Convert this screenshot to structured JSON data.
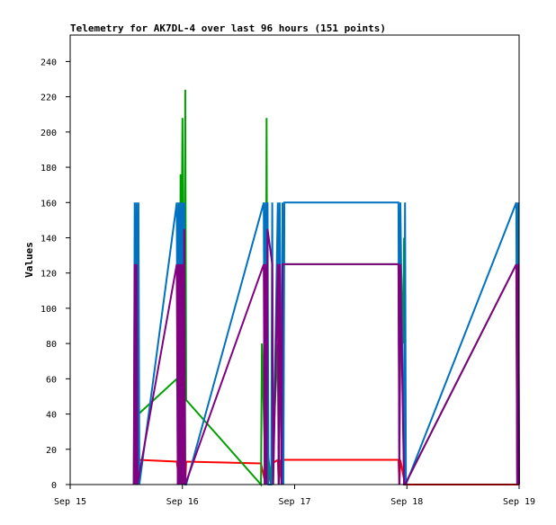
{
  "chart_data": {
    "type": "line",
    "title": "Telemetry for AK7DL-4 over last 96 hours (151 points)",
    "xlabel": "",
    "ylabel": "Values",
    "ylim": [
      0,
      255
    ],
    "xlim": [
      "2023-09-15T00:00",
      "2023-09-19T00:00"
    ],
    "yticks": [
      0,
      20,
      40,
      60,
      80,
      100,
      120,
      140,
      160,
      180,
      200,
      220,
      240
    ],
    "xticks": [
      {
        "value": "2023-09-15T00:00",
        "label": "Sep 15"
      },
      {
        "value": "2023-09-16T00:00",
        "label": "Sep 16"
      },
      {
        "value": "2023-09-17T00:00",
        "label": "Sep 17"
      },
      {
        "value": "2023-09-18T00:00",
        "label": "Sep 18"
      },
      {
        "value": "2023-09-19T00:00",
        "label": "Sep 19"
      }
    ],
    "grid": false,
    "legend": "none",
    "series": [
      {
        "color": "#ff0000",
        "points": [
          [
            "2023-09-15T13:36",
            0
          ],
          [
            "2023-09-15T13:48",
            14
          ],
          [
            "2023-09-15T14:24",
            0
          ],
          [
            "2023-09-15T14:36",
            14
          ],
          [
            "2023-09-15T22:48",
            13
          ],
          [
            "2023-09-15T23:24",
            0
          ],
          [
            "2023-09-15T23:36",
            14
          ],
          [
            "2023-09-16T00:36",
            0
          ],
          [
            "2023-09-16T00:48",
            13
          ],
          [
            "2023-09-16T16:48",
            12
          ],
          [
            "2023-09-16T17:48",
            0
          ],
          [
            "2023-09-16T18:00",
            12
          ],
          [
            "2023-09-16T19:00",
            0
          ],
          [
            "2023-09-16T19:12",
            12
          ],
          [
            "2023-09-16T20:24",
            14
          ],
          [
            "2023-09-16T20:36",
            0
          ],
          [
            "2023-09-16T20:48",
            14
          ],
          [
            "2023-09-16T21:12",
            0
          ],
          [
            "2023-09-16T21:24",
            14
          ],
          [
            "2023-09-17T22:12",
            14
          ],
          [
            "2023-09-17T22:24",
            0
          ],
          [
            "2023-09-17T22:36",
            14
          ],
          [
            "2023-09-17T23:36",
            0
          ],
          [
            "2023-09-18T23:24",
            0
          ],
          [
            "2023-09-18T23:36",
            0
          ],
          [
            "2023-09-19T00:00",
            0
          ]
        ]
      },
      {
        "color": "#00a000",
        "points": [
          [
            "2023-09-15T13:36",
            0
          ],
          [
            "2023-09-15T13:48",
            80
          ],
          [
            "2023-09-15T14:00",
            30
          ],
          [
            "2023-09-15T14:12",
            125
          ],
          [
            "2023-09-15T14:24",
            0
          ],
          [
            "2023-09-15T14:36",
            40
          ],
          [
            "2023-09-15T22:48",
            60
          ],
          [
            "2023-09-15T23:00",
            45
          ],
          [
            "2023-09-15T23:12",
            130
          ],
          [
            "2023-09-15T23:24",
            0
          ],
          [
            "2023-09-15T23:36",
            176
          ],
          [
            "2023-09-15T23:48",
            120
          ],
          [
            "2023-09-16T00:00",
            208
          ],
          [
            "2023-09-16T00:12",
            125
          ],
          [
            "2023-09-16T00:24",
            0
          ],
          [
            "2023-09-16T00:36",
            224
          ],
          [
            "2023-09-16T00:48",
            48
          ],
          [
            "2023-09-16T16:48",
            0
          ],
          [
            "2023-09-16T17:00",
            80
          ],
          [
            "2023-09-16T17:12",
            60
          ],
          [
            "2023-09-16T17:48",
            0
          ],
          [
            "2023-09-16T18:00",
            208
          ],
          [
            "2023-09-16T18:12",
            20
          ],
          [
            "2023-09-16T19:00",
            0
          ],
          [
            "2023-09-16T20:24",
            80
          ],
          [
            "2023-09-16T20:36",
            0
          ],
          [
            "2023-09-16T20:48",
            125
          ],
          [
            "2023-09-16T21:12",
            0
          ],
          [
            "2023-09-16T21:24",
            125
          ],
          [
            "2023-09-17T22:12",
            125
          ],
          [
            "2023-09-17T22:24",
            20
          ],
          [
            "2023-09-17T22:48",
            120
          ],
          [
            "2023-09-17T23:12",
            80
          ],
          [
            "2023-09-17T23:24",
            140
          ],
          [
            "2023-09-17T23:36",
            0
          ],
          [
            "2023-09-18T23:24",
            125
          ],
          [
            "2023-09-18T23:36",
            0
          ],
          [
            "2023-09-18T23:48",
            80
          ],
          [
            "2023-09-19T00:00",
            80
          ]
        ]
      },
      {
        "color": "#0070c0",
        "points": [
          [
            "2023-09-15T13:36",
            0
          ],
          [
            "2023-09-15T13:48",
            160
          ],
          [
            "2023-09-15T14:00",
            0
          ],
          [
            "2023-09-15T14:12",
            160
          ],
          [
            "2023-09-15T14:24",
            0
          ],
          [
            "2023-09-15T14:36",
            160
          ],
          [
            "2023-09-15T14:48",
            0
          ],
          [
            "2023-09-15T22:48",
            160
          ],
          [
            "2023-09-15T23:00",
            0
          ],
          [
            "2023-09-15T23:12",
            160
          ],
          [
            "2023-09-15T23:24",
            0
          ],
          [
            "2023-09-15T23:36",
            160
          ],
          [
            "2023-09-15T23:48",
            0
          ],
          [
            "2023-09-16T00:00",
            160
          ],
          [
            "2023-09-16T00:12",
            0
          ],
          [
            "2023-09-16T00:24",
            160
          ],
          [
            "2023-09-16T00:36",
            0
          ],
          [
            "2023-09-16T00:48",
            0
          ],
          [
            "2023-09-16T17:24",
            160
          ],
          [
            "2023-09-16T17:36",
            0
          ],
          [
            "2023-09-16T17:48",
            160
          ],
          [
            "2023-09-16T18:00",
            0
          ],
          [
            "2023-09-16T18:12",
            160
          ],
          [
            "2023-09-16T18:24",
            0
          ],
          [
            "2023-09-16T19:00",
            0
          ],
          [
            "2023-09-16T19:12",
            160
          ],
          [
            "2023-09-16T19:24",
            0
          ],
          [
            "2023-09-16T20:24",
            160
          ],
          [
            "2023-09-16T20:36",
            0
          ],
          [
            "2023-09-16T20:48",
            160
          ],
          [
            "2023-09-16T21:12",
            0
          ],
          [
            "2023-09-16T21:24",
            160
          ],
          [
            "2023-09-16T21:36",
            0
          ],
          [
            "2023-09-16T21:48",
            160
          ],
          [
            "2023-09-17T22:12",
            160
          ],
          [
            "2023-09-17T22:24",
            0
          ],
          [
            "2023-09-17T22:36",
            160
          ],
          [
            "2023-09-17T23:24",
            0
          ],
          [
            "2023-09-17T23:36",
            160
          ],
          [
            "2023-09-17T23:48",
            0
          ],
          [
            "2023-09-18T23:24",
            160
          ],
          [
            "2023-09-18T23:36",
            0
          ],
          [
            "2023-09-18T23:48",
            160
          ],
          [
            "2023-09-19T00:00",
            0
          ]
        ]
      },
      {
        "color": "#800080",
        "points": [
          [
            "2023-09-15T13:36",
            0
          ],
          [
            "2023-09-15T13:48",
            125
          ],
          [
            "2023-09-15T14:00",
            0
          ],
          [
            "2023-09-15T14:12",
            125
          ],
          [
            "2023-09-15T14:24",
            0
          ],
          [
            "2023-09-15T22:48",
            125
          ],
          [
            "2023-09-15T23:00",
            0
          ],
          [
            "2023-09-15T23:12",
            125
          ],
          [
            "2023-09-15T23:24",
            0
          ],
          [
            "2023-09-15T23:36",
            125
          ],
          [
            "2023-09-15T23:48",
            0
          ],
          [
            "2023-09-16T00:00",
            125
          ],
          [
            "2023-09-16T00:12",
            0
          ],
          [
            "2023-09-16T00:24",
            145
          ],
          [
            "2023-09-16T00:36",
            0
          ],
          [
            "2023-09-16T17:24",
            125
          ],
          [
            "2023-09-16T17:36",
            0
          ],
          [
            "2023-09-16T17:48",
            125
          ],
          [
            "2023-09-16T18:00",
            0
          ],
          [
            "2023-09-16T18:12",
            145
          ],
          [
            "2023-09-16T19:12",
            125
          ],
          [
            "2023-09-16T19:24",
            0
          ],
          [
            "2023-09-16T20:24",
            125
          ],
          [
            "2023-09-16T20:36",
            0
          ],
          [
            "2023-09-16T20:48",
            125
          ],
          [
            "2023-09-16T21:12",
            0
          ],
          [
            "2023-09-16T21:24",
            125
          ],
          [
            "2023-09-17T22:12",
            125
          ],
          [
            "2023-09-17T22:24",
            0
          ],
          [
            "2023-09-17T22:36",
            125
          ],
          [
            "2023-09-17T23:24",
            0
          ],
          [
            "2023-09-17T23:36",
            0
          ],
          [
            "2023-09-18T23:24",
            125
          ],
          [
            "2023-09-18T23:36",
            0
          ],
          [
            "2023-09-18T23:48",
            125
          ],
          [
            "2023-09-19T00:00",
            0
          ]
        ]
      }
    ]
  }
}
